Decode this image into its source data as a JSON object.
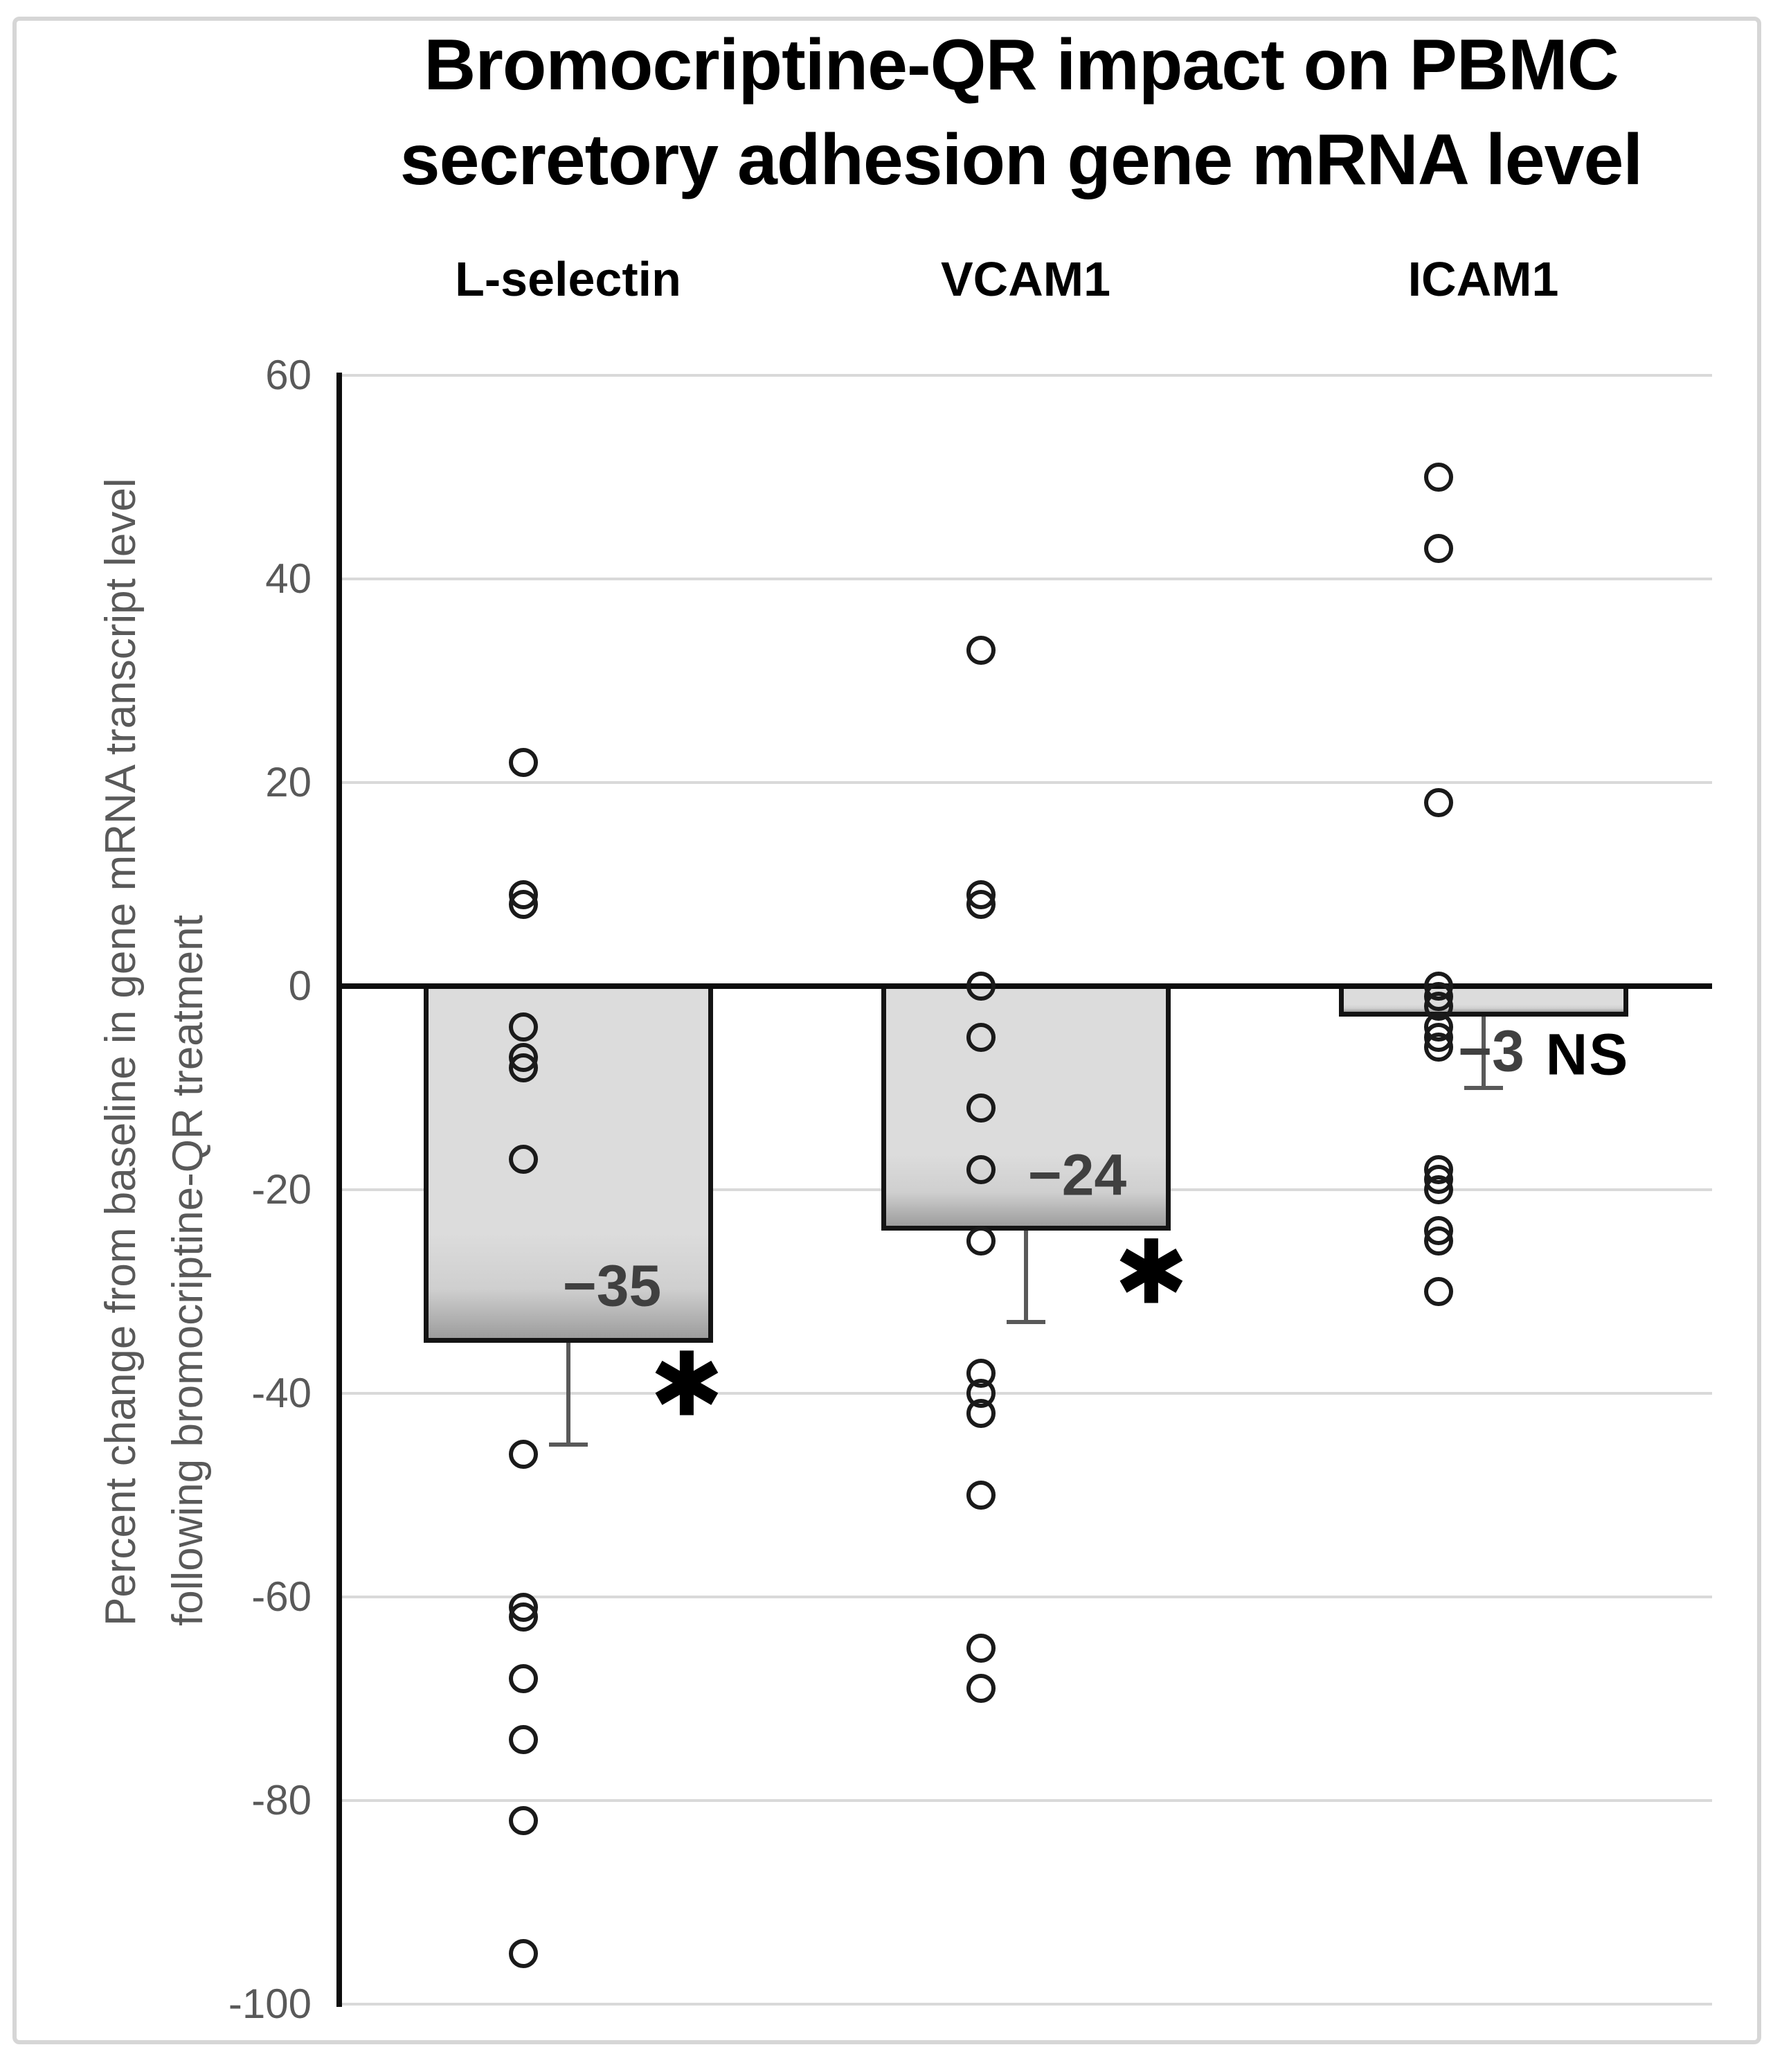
{
  "figure": {
    "title_line1": "Bromocriptine-QR impact on PBMC",
    "title_line2": "secretory adhesion gene mRNA level",
    "y_axis_title_line1": "Percent change from baseline in gene mRNA  transcript level",
    "y_axis_title_line2": "following bromocriptine-QR treatment"
  },
  "chart_data": {
    "type": "bar",
    "title": "Bromocriptine-QR impact on PBMC secretory adhesion gene mRNA level",
    "xlabel": "",
    "ylabel": "Percent change from baseline in gene mRNA transcript level following bromocriptine-QR treatment",
    "ylim": [
      -100,
      60
    ],
    "ytick_step": 20,
    "yticks": [
      "60",
      "40",
      "20",
      "0",
      "-20",
      "-40",
      "-60",
      "-80",
      "-100"
    ],
    "grid": true,
    "legend": "none",
    "categories": [
      "L-selectin",
      "VCAM1",
      "ICAM1"
    ],
    "series": [
      {
        "name": "mean percent change (bar height)",
        "values": [
          -35,
          -24,
          -3
        ]
      }
    ],
    "bar_labels": [
      "−35",
      "−24",
      "−3"
    ],
    "error_bar_lower_end": [
      -45,
      -33,
      -10
    ],
    "significance_markers": [
      "*",
      "*",
      "NS"
    ],
    "scatter_points": {
      "L-selectin": [
        22,
        9,
        8,
        -4,
        -7,
        -8,
        -17,
        -46,
        -61,
        -62,
        -68,
        -74,
        -82,
        -95
      ],
      "VCAM1": [
        33,
        9,
        8,
        0,
        -5,
        -12,
        -18,
        -25,
        -38,
        -40,
        -42,
        -50,
        -65,
        -69
      ],
      "ICAM1": [
        50,
        43,
        18,
        0,
        -1,
        -2,
        -4,
        -5,
        -6,
        -18,
        -19,
        -20,
        -24,
        -25,
        -30
      ]
    },
    "colors": {
      "bar_fill": "#dcdcdc",
      "bar_border": "#141414",
      "gridline": "#d9d9d9",
      "axis_line": "#0d0d0d",
      "error_bar": "#595959",
      "tick_label": "#595959",
      "bar_value_label": "#404040",
      "point_stroke": "#1a1a1a",
      "annotation": "#000000"
    }
  }
}
